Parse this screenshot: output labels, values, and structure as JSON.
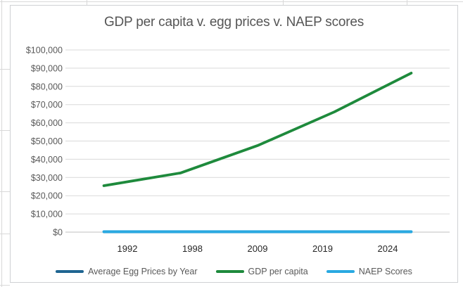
{
  "chart_data": {
    "type": "line",
    "title": "GDP per capita v. egg prices v. NAEP scores",
    "categories": [
      "1992",
      "1998",
      "2009",
      "2019",
      "2024"
    ],
    "series": [
      {
        "name": "Average Egg Prices by Year",
        "color": "#1f6591",
        "values": [
          1,
          1,
          2,
          2,
          4
        ]
      },
      {
        "name": "GDP per capita",
        "color": "#1e8a3c",
        "values": [
          25500,
          32500,
          47500,
          66000,
          87300
        ]
      },
      {
        "name": "NAEP Scores",
        "color": "#29a9e1",
        "values": [
          220,
          220,
          220,
          220,
          220
        ]
      }
    ],
    "ylim": [
      0,
      100000
    ],
    "y_tick_step": 10000,
    "y_tick_labels": [
      "$0",
      "$10,000",
      "$20,000",
      "$30,000",
      "$40,000",
      "$50,000",
      "$60,000",
      "$70,000",
      "$80,000",
      "$90,000",
      "$100,000"
    ],
    "xlabel": "",
    "ylabel": "",
    "grid": "horizontal",
    "legend_position": "bottom",
    "colors": {
      "gridline": "#d9d9d9",
      "axis_line": "#bfbfbf",
      "title_text": "#555555",
      "y_tick_text": "#595959",
      "x_tick_text": "#262626",
      "legend_text": "#595959",
      "card_border": "#cfd1d4",
      "background": "#ffffff"
    }
  }
}
